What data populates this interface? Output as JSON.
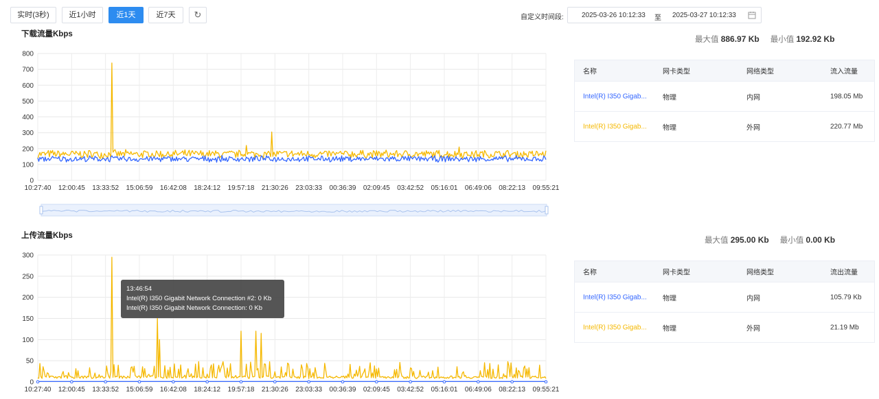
{
  "toolbar": {
    "buttons": [
      "实时(3秒)",
      "近1小时",
      "近1天",
      "近7天"
    ],
    "active": "近1天",
    "refresh_icon": "refresh-icon",
    "custom_label": "自定义时间段:",
    "start": "2025-03-26 10:12:33",
    "sep": "至",
    "end": "2025-03-27 10:12:33",
    "calendar_icon": "calendar-icon"
  },
  "download": {
    "title": "下载流量Kbps",
    "max_label": "最大值",
    "max_value": "886.97 Kb",
    "min_label": "最小值",
    "min_value": "192.92 Kb",
    "table": {
      "headers": [
        "名称",
        "网卡类型",
        "网络类型",
        "流入流量"
      ],
      "rows": [
        {
          "name": "Intel(R) I350 Gigab...",
          "card": "物理",
          "net": "内网",
          "flow": "198.05 Mb",
          "color": "#3366ff"
        },
        {
          "name": "Intel(R) I350 Gigab...",
          "card": "物理",
          "net": "外网",
          "flow": "220.77 Mb",
          "color": "#f5b800"
        }
      ]
    }
  },
  "upload": {
    "title": "上传流量Kbps",
    "max_label": "最大值",
    "max_value": "295.00 Kb",
    "min_label": "最小值",
    "min_value": "0.00 Kb",
    "table": {
      "headers": [
        "名称",
        "网卡类型",
        "网络类型",
        "流出流量"
      ],
      "rows": [
        {
          "name": "Intel(R) I350 Gigab...",
          "card": "物理",
          "net": "内网",
          "flow": "105.79 Kb",
          "color": "#3366ff"
        },
        {
          "name": "Intel(R) I350 Gigab...",
          "card": "物理",
          "net": "外网",
          "flow": "21.19 Mb",
          "color": "#f5b800"
        }
      ]
    },
    "tooltip": {
      "time": "13:46:54",
      "line1": "Intel(R) I350 Gigabit Network Connection #2: 0 Kb",
      "line2": "Intel(R) I350 Gigabit Network Connection: 0 Kb"
    }
  },
  "chart_data": [
    {
      "type": "line",
      "title": "下载流量Kbps",
      "x_ticks": [
        "10:27:40",
        "12:00:45",
        "13:33:52",
        "15:06:59",
        "16:42:08",
        "18:24:12",
        "19:57:18",
        "21:30:26",
        "23:03:33",
        "00:36:39",
        "02:09:45",
        "03:42:52",
        "05:16:01",
        "06:49:06",
        "08:22:13",
        "09:55:21"
      ],
      "ylim": [
        0,
        800
      ],
      "y_ticks": [
        0,
        100,
        200,
        300,
        400,
        500,
        600,
        700,
        800
      ],
      "grid": true,
      "series": [
        {
          "color": "#f5b800",
          "baseline": 165,
          "noise": 30,
          "spikes": [
            [
              0.145,
              740
            ],
            [
              0.46,
              305
            ],
            [
              0.41,
              220
            ],
            [
              0.83,
              210
            ]
          ]
        },
        {
          "color": "#3366ff",
          "baseline": 135,
          "noise": 22,
          "spikes": []
        }
      ]
    },
    {
      "type": "line",
      "title": "上传流量Kbps",
      "x_ticks": [
        "10:27:40",
        "12:00:45",
        "13:33:52",
        "15:06:59",
        "16:42:08",
        "18:24:12",
        "19:57:18",
        "21:30:26",
        "23:03:33",
        "00:36:39",
        "02:09:45",
        "03:42:52",
        "05:16:01",
        "06:49:06",
        "08:22:13",
        "09:55:21"
      ],
      "ylim": [
        0,
        300
      ],
      "y_ticks": [
        0,
        50,
        100,
        150,
        200,
        250,
        300
      ],
      "grid": true,
      "series": [
        {
          "color": "#f5b800",
          "baseline": 8,
          "noise": 40,
          "spikes": [
            [
              0.145,
              295
            ],
            [
              0.236,
              150
            ],
            [
              0.24,
              100
            ],
            [
              0.4,
              120
            ],
            [
              0.43,
              120
            ],
            [
              0.44,
              115
            ]
          ]
        },
        {
          "color": "#3366ff",
          "baseline": 1,
          "noise": 0,
          "spikes": []
        }
      ]
    }
  ]
}
